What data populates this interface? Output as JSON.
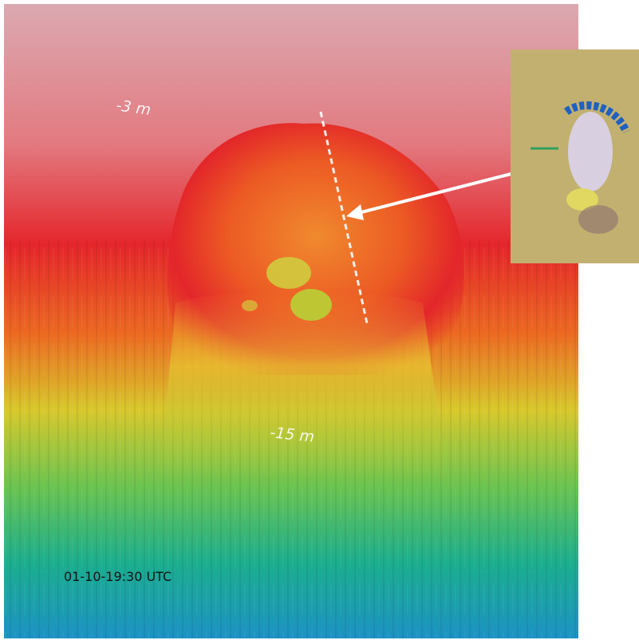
{
  "labels": {
    "shallow_depth": "-3 m",
    "deep_depth": "-15 m",
    "timestamp": "01-10-19:30 UTC"
  }
}
